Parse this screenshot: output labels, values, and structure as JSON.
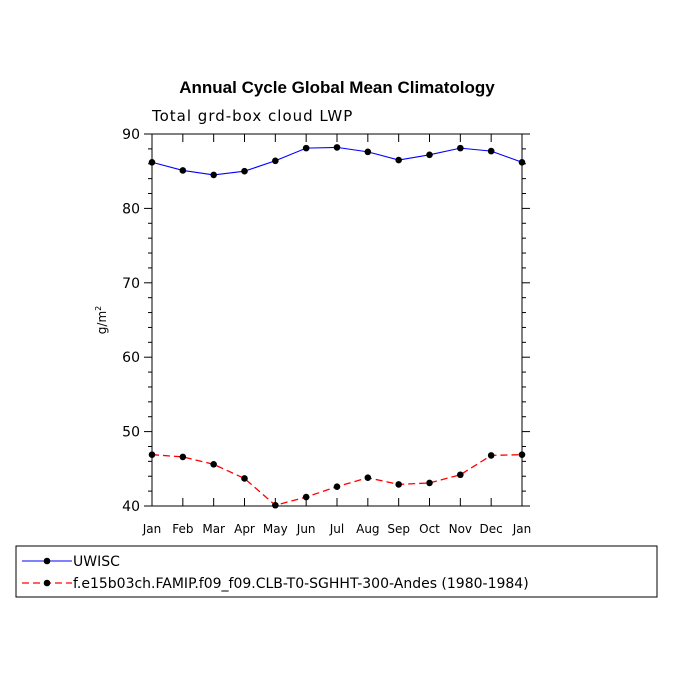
{
  "chart_data": {
    "type": "line",
    "title": "Annual Cycle Global Mean Climatology",
    "subtitle": "Total grd-box cloud LWP",
    "ylabel": "g/m",
    "ylabel_sup": "2",
    "xlabel": "",
    "ylim": [
      40,
      90
    ],
    "yticks": [
      40,
      50,
      60,
      70,
      80,
      90
    ],
    "categories": [
      "Jan",
      "Feb",
      "Mar",
      "Apr",
      "May",
      "Jun",
      "Jul",
      "Aug",
      "Sep",
      "Oct",
      "Nov",
      "Dec",
      "Jan"
    ],
    "legend_position": "bottom",
    "series": [
      {
        "name": "UWISC",
        "color": "#0000ff",
        "dash": "solid",
        "values": [
          86.2,
          85.1,
          84.5,
          85.0,
          86.4,
          88.1,
          88.2,
          87.6,
          86.5,
          87.2,
          88.1,
          87.7,
          86.2
        ]
      },
      {
        "name": "f.e15b03ch.FAMIP.f09_f09.CLB-T0-SGHHT-300-Andes (1980-1984)",
        "color": "#ff0000",
        "dash": "dashed",
        "values": [
          46.9,
          46.6,
          45.6,
          43.7,
          40.1,
          41.2,
          42.6,
          43.8,
          42.9,
          43.1,
          44.2,
          46.8,
          46.9
        ]
      }
    ]
  }
}
